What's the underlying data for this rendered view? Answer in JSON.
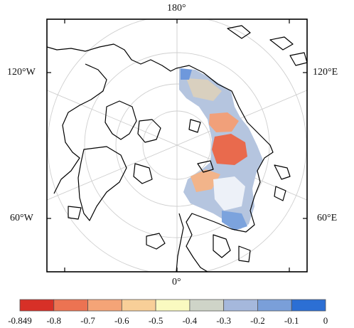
{
  "map": {
    "labels": {
      "top": "180°",
      "bottom": "0°",
      "left_upper": "120°W",
      "left_lower": "60°W",
      "right_upper": "120°E",
      "right_lower": "60°E"
    }
  },
  "colorbar": {
    "ticks": [
      "-0.849",
      "-0.8",
      "-0.7",
      "-0.6",
      "-0.5",
      "-0.4",
      "-0.3",
      "-0.2",
      "-0.1",
      "0"
    ],
    "colors": [
      "#d73027",
      "#ec7352",
      "#f4a477",
      "#f8cf98",
      "#fafac0",
      "#cfd4c8",
      "#a5b8dc",
      "#7a9fd9",
      "#2c6fd4"
    ]
  }
}
